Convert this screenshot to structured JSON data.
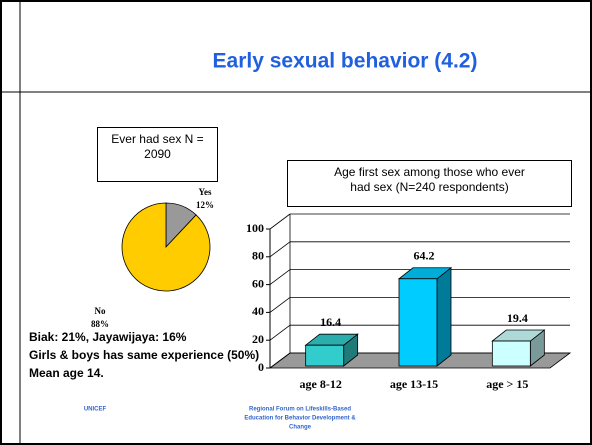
{
  "slide": {
    "title": "Early sexual behavior  (4.2)",
    "notes": [
      "Biak: 21%, Jayawijaya: 16%",
      "Girls & boys has same experience (50%)",
      "Mean age 14."
    ],
    "footer_left": "UNICEF",
    "footer_center": [
      "Regional Forum on Lifeskills-Based",
      "Education for Behavior Development &",
      "Change"
    ]
  },
  "chart_data": [
    {
      "type": "pie",
      "title": "Ever had sex  N = 2090",
      "categories": [
        "Yes",
        "No"
      ],
      "values": [
        12,
        88
      ],
      "value_labels": [
        "12%",
        "88%"
      ],
      "colors": [
        "#999999",
        "#ffcc00"
      ]
    },
    {
      "type": "bar",
      "title": "Age first sex among those who ever had sex (N=240 respondents)",
      "categories": [
        "age 8-12",
        "age 13-15",
        "age > 15"
      ],
      "values": [
        16.4,
        64.2,
        19.4
      ],
      "colors": [
        "#33cccc",
        "#00ccff",
        "#ccffff"
      ],
      "ylim": [
        0,
        100
      ],
      "yticks": [
        0,
        20,
        40,
        60,
        80,
        100
      ],
      "grid": true
    }
  ]
}
